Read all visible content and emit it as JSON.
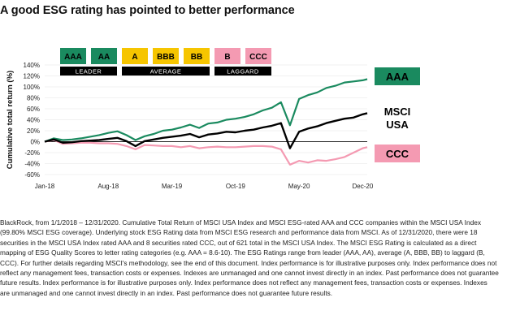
{
  "title": "A good ESG rating has pointed to better performance",
  "legend": {
    "ratings": [
      {
        "label": "AAA",
        "color": "#1a8a5f",
        "text": "#000000"
      },
      {
        "label": "AA",
        "color": "#1a8a5f",
        "text": "#000000"
      },
      {
        "label": "A",
        "color": "#f6c500",
        "text": "#000000"
      },
      {
        "label": "BBB",
        "color": "#f6c500",
        "text": "#000000"
      },
      {
        "label": "BB",
        "color": "#f6c500",
        "text": "#000000"
      },
      {
        "label": "B",
        "color": "#f49ab2",
        "text": "#000000"
      },
      {
        "label": "CCC",
        "color": "#f49ab2",
        "text": "#000000"
      }
    ],
    "groups": [
      "LEADER",
      "AVERAGE",
      "LAGGARD"
    ]
  },
  "chart_data": {
    "type": "line",
    "ylabel": "Cumulative total return (%)",
    "xlabel": "",
    "ylim": [
      -60,
      140
    ],
    "yticks": [
      140,
      120,
      100,
      80,
      60,
      40,
      20,
      0,
      -20,
      -40,
      -60
    ],
    "ytick_labels": [
      "140%",
      "120%",
      "100%",
      "80%",
      "60%",
      "40%",
      "20%",
      "0%",
      "-20%",
      "-40%",
      "-60%"
    ],
    "xticks": [
      "Jan-18",
      "Aug-18",
      "Mar-19",
      "Oct-19",
      "May-20",
      "Dec-20"
    ],
    "xtick_pos": [
      0,
      7,
      14,
      21,
      28,
      35
    ],
    "x_range": [
      0,
      35.5
    ],
    "series": [
      {
        "name": "AAA",
        "label": "AAA",
        "color": "#1a8a5f",
        "label_bg": "#1a8a5f",
        "label_fg": "#000000",
        "x": [
          0,
          1,
          2,
          3,
          4,
          5,
          6,
          7,
          8,
          9,
          10,
          11,
          12,
          13,
          14,
          15,
          16,
          17,
          18,
          19,
          20,
          21,
          22,
          23,
          24,
          25,
          26,
          27,
          28,
          29,
          30,
          31,
          32,
          33,
          34,
          35,
          35.5
        ],
        "values": [
          0,
          6,
          3,
          4,
          6,
          9,
          12,
          16,
          19,
          12,
          3,
          10,
          14,
          20,
          22,
          26,
          31,
          25,
          33,
          35,
          40,
          42,
          45,
          50,
          57,
          62,
          72,
          30,
          78,
          85,
          90,
          98,
          102,
          108,
          110,
          112,
          114
        ]
      },
      {
        "name": "MSCI USA",
        "label": "MSCI\nUSA",
        "color": "#000000",
        "label_bg": "none",
        "label_fg": "#000000",
        "x": [
          0,
          1,
          2,
          3,
          4,
          5,
          6,
          7,
          8,
          9,
          10,
          11,
          12,
          13,
          14,
          15,
          16,
          17,
          18,
          19,
          20,
          21,
          22,
          23,
          24,
          25,
          26,
          27,
          28,
          29,
          30,
          31,
          32,
          33,
          34,
          35,
          35.5
        ],
        "values": [
          0,
          4,
          -2,
          -1,
          1,
          2,
          3,
          5,
          7,
          1,
          -8,
          1,
          4,
          7,
          9,
          11,
          14,
          8,
          13,
          15,
          18,
          17,
          20,
          22,
          26,
          29,
          34,
          -12,
          18,
          24,
          28,
          34,
          38,
          42,
          44,
          50,
          52
        ]
      },
      {
        "name": "CCC",
        "label": "CCC",
        "color": "#f49ab2",
        "label_bg": "#f49ab2",
        "label_fg": "#000000",
        "x": [
          0,
          1,
          2,
          3,
          4,
          5,
          6,
          7,
          8,
          9,
          10,
          11,
          12,
          13,
          14,
          15,
          16,
          17,
          18,
          19,
          20,
          21,
          22,
          23,
          24,
          25,
          26,
          27,
          28,
          29,
          30,
          31,
          32,
          33,
          34,
          35,
          35.5
        ],
        "values": [
          0,
          3,
          -4,
          -3,
          -2,
          -2,
          -3,
          -3,
          -4,
          -8,
          -14,
          -6,
          -7,
          -8,
          -8,
          -10,
          -8,
          -12,
          -10,
          -9,
          -10,
          -10,
          -9,
          -8,
          -8,
          -9,
          -14,
          -42,
          -35,
          -38,
          -34,
          -35,
          -32,
          -28,
          -20,
          -12,
          -10
        ]
      }
    ]
  },
  "footnote": {
    "source": "BlackRock, from 1/1/2018 – 12/31/2020. Cumulative Total Return of MSCI USA Index and MSCI ESG-rated AAA and CCC companies within the MSCI USA Index (99.80% MSCI ESG coverage). Underlying stock ESG Rating data from MSCI ESG research and performance data from MSCI. As of 12/31/2020, there were 18 securities in the MSCI USA Index rated AAA and 8 securities rated CCC, out of 621 total in the MSCI USA Index.",
    "about": "The MSCI ESG Rating is calculated as a direct mapping of ESG Quality Scores to letter rating categories (e.g. AAA = 8.6-10). The ESG Ratings range from leader (AAA, AA), average (A, BBB, BB) to laggard (B, CCC). For further details regarding MSCI's methodology, see the end of this document.",
    "disclaimer": "Index performance is for illustrative purposes only. Index performance does not reflect any management fees, transaction costs or expenses. Indexes are unmanaged and one cannot invest directly in an index. Past performance does not guarantee future results. Index performance is for illustrative purposes only. Index performance does not reflect any management fees, transaction costs or expenses. Indexes are unmanaged and one cannot invest directly in an index. Past performance does not guarantee future results."
  }
}
